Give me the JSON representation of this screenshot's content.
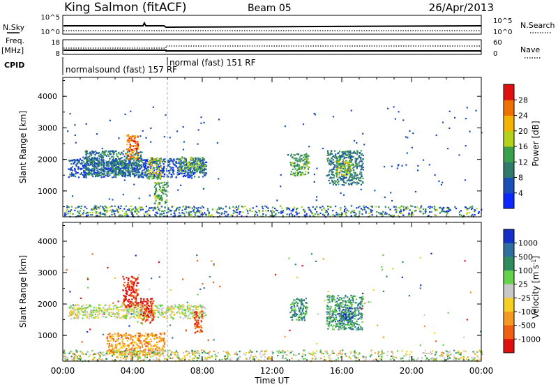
{
  "header": {
    "station": "King Salmon (fitACF)",
    "beam": "Beam 05",
    "date": "26/Apr/2013"
  },
  "status_panel": {
    "nsky_label": "N.Sky",
    "nsky_ticks": [
      "10^5",
      "10^0"
    ],
    "nsearch_label": "N.Search",
    "nsearch_ticks": [
      "10^5",
      "10^0"
    ],
    "freq_label": "Freq.",
    "freq_unit": "[MHz]",
    "freq_ticks": [
      "18",
      "8"
    ],
    "nave_label": "Nave",
    "nave_ticks": [
      "60",
      "0"
    ],
    "cpid_label": "CPID",
    "cpid_segments": [
      {
        "label": "normalsound (fast) 157 RF",
        "start_hour": 0,
        "end_hour": 6
      },
      {
        "label": "normal (fast) 151 RF",
        "start_hour": 6,
        "end_hour": 24
      }
    ]
  },
  "chart_data": [
    {
      "type": "heatmap",
      "name": "power",
      "ylabel": "Slant Range [km]",
      "xlim_hours": [
        0,
        24
      ],
      "ylim": [
        180,
        4600
      ],
      "yticks": [
        1000,
        2000,
        3000,
        4000
      ],
      "colorbar_label": "Power [dB]",
      "colorbar_ticks": [
        "4",
        "8",
        "12",
        "16",
        "20",
        "24",
        "28"
      ],
      "colorbar_colors": [
        "#0a28ff",
        "#1b4fb8",
        "#2f7a6a",
        "#3aa04a",
        "#b3d218",
        "#f2b400",
        "#f07000",
        "#e01010"
      ],
      "clusters": [
        {
          "t0": 0.3,
          "t1": 8.2,
          "r0": 1450,
          "r1": 2050,
          "level": 1
        },
        {
          "t0": 1.2,
          "t1": 4.5,
          "r0": 1500,
          "r1": 2300,
          "level": 2
        },
        {
          "t0": 3.6,
          "t1": 4.3,
          "r0": 2000,
          "r1": 2800,
          "level": 6
        },
        {
          "t0": 4.8,
          "t1": 5.6,
          "r0": 1400,
          "r1": 2100,
          "level": 4
        },
        {
          "t0": 5.2,
          "t1": 6.0,
          "r0": 600,
          "r1": 1300,
          "level": 3
        },
        {
          "t0": 6.6,
          "t1": 8.1,
          "r0": 1600,
          "r1": 2100,
          "level": 3
        },
        {
          "t0": 13.0,
          "t1": 14.1,
          "r0": 1500,
          "r1": 2200,
          "level": 3
        },
        {
          "t0": 15.1,
          "t1": 17.2,
          "r0": 1200,
          "r1": 2300,
          "level": 2
        },
        {
          "t0": 15.6,
          "t1": 16.5,
          "r0": 1500,
          "r1": 2000,
          "level": 4
        }
      ]
    },
    {
      "type": "heatmap",
      "name": "velocity",
      "ylabel": "Slant Range [km]",
      "xlabel": "Time UT",
      "xlim_hours": [
        0,
        24
      ],
      "ylim": [
        180,
        4600
      ],
      "yticks": [
        1000,
        2000,
        3000,
        4000
      ],
      "xticks": [
        "00:00",
        "04:00",
        "08:00",
        "12:00",
        "16:00",
        "20:00",
        "00:00"
      ],
      "colorbar_label": "Velocity [m s^-1]",
      "colorbar_ticks": [
        "1000",
        "500",
        "100",
        "25",
        "-25",
        "-100",
        "-500",
        "-1000"
      ],
      "colorbar_colors": [
        "#1530c8",
        "#2f6fa0",
        "#2f8a5f",
        "#66d14a",
        "#c8c8c8",
        "#f5d020",
        "#f59a20",
        "#f06010",
        "#e01010"
      ],
      "clusters": [
        {
          "t0": 0.3,
          "t1": 8.2,
          "r0": 1550,
          "r1": 2000,
          "level": 4
        },
        {
          "t0": 3.4,
          "t1": 4.3,
          "r0": 1900,
          "r1": 2900,
          "level": 8
        },
        {
          "t0": 4.4,
          "t1": 5.2,
          "r0": 1400,
          "r1": 2200,
          "level": 8
        },
        {
          "t0": 2.5,
          "t1": 5.8,
          "r0": 400,
          "r1": 1100,
          "level": 6
        },
        {
          "t0": 7.5,
          "t1": 8.0,
          "r0": 1100,
          "r1": 1800,
          "level": 7
        },
        {
          "t0": 13.0,
          "t1": 14.0,
          "r0": 1500,
          "r1": 2200,
          "level": 2
        },
        {
          "t0": 15.1,
          "t1": 17.2,
          "r0": 1200,
          "r1": 2300,
          "level": 2
        },
        {
          "t0": 15.8,
          "t1": 16.6,
          "r0": 1400,
          "r1": 1900,
          "level": 1
        }
      ]
    }
  ]
}
